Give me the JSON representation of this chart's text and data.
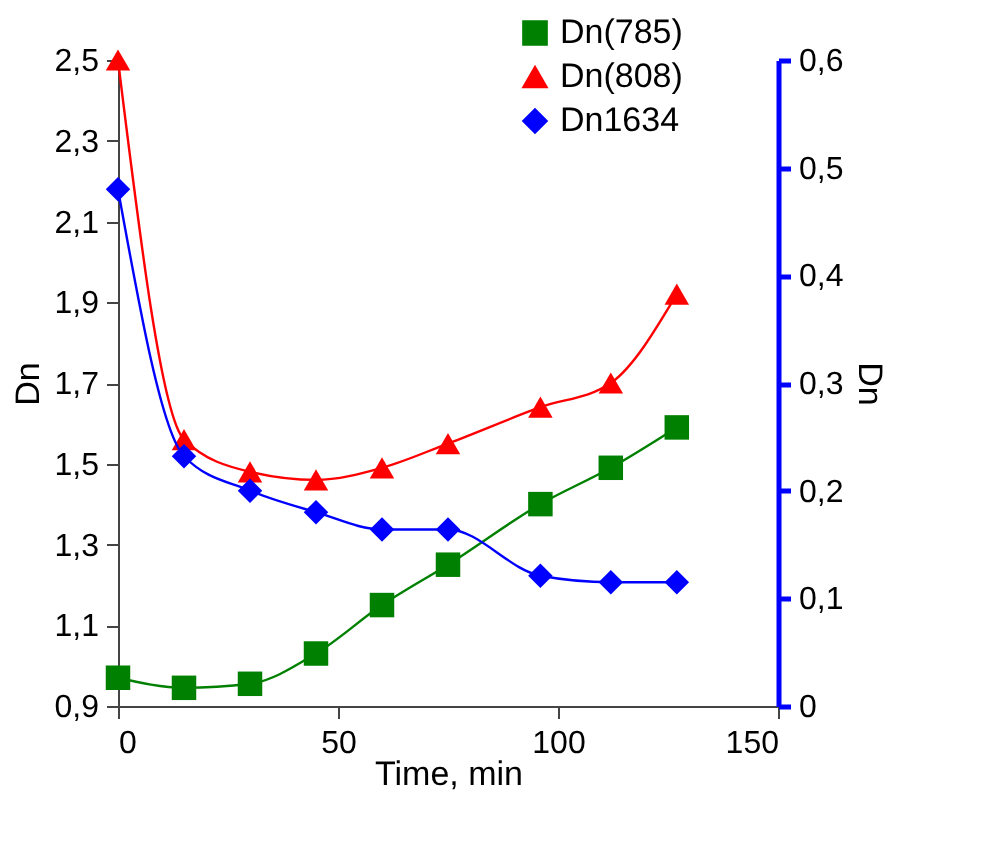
{
  "chart_data": {
    "type": "line",
    "xlabel": "Time, min",
    "ylabel": "Dn",
    "y2label": "Dn",
    "x": [
      0,
      15,
      30,
      45,
      60,
      75,
      96,
      112,
      127
    ],
    "series": [
      {
        "name": "Dn(785)",
        "color": "#008000",
        "marker": "square",
        "values": [
          0.97,
          0.945,
          0.955,
          1.03,
          1.15,
          1.25,
          1.4,
          1.49,
          1.59
        ]
      },
      {
        "name": "Dn(808)",
        "color": "#ff0000",
        "marker": "triangle",
        "values": [
          2.5,
          1.56,
          1.48,
          1.46,
          1.49,
          1.55,
          1.64,
          1.7,
          1.92
        ]
      },
      {
        "name": "Dn1634",
        "color": "#0000ff",
        "marker": "diamond",
        "axis": "y2",
        "values": [
          0.48,
          0.232,
          0.2,
          0.18,
          0.164,
          0.164,
          0.121,
          0.115,
          0.115
        ]
      }
    ],
    "xlim": [
      0,
      150
    ],
    "xticks": [
      0,
      50,
      100,
      150
    ],
    "ylim": [
      0.9,
      2.5
    ],
    "yticks": [
      {
        "value": 0.9,
        "label": "0,9"
      },
      {
        "value": 1.1,
        "label": "1,1"
      },
      {
        "value": 1.3,
        "label": "1,3"
      },
      {
        "value": 1.5,
        "label": "1,5"
      },
      {
        "value": 1.7,
        "label": "1,7"
      },
      {
        "value": 1.9,
        "label": "1,9"
      },
      {
        "value": 2.1,
        "label": "2,1"
      },
      {
        "value": 2.3,
        "label": "2,3"
      },
      {
        "value": 2.5,
        "label": "2,5"
      }
    ],
    "y2lim": [
      0,
      0.6
    ],
    "y2ticks": [
      0,
      {
        "value": 0.1,
        "label": "0,1"
      },
      {
        "value": 0.2,
        "label": "0,2"
      },
      {
        "value": 0.3,
        "label": "0,3"
      },
      {
        "value": 0.4,
        "label": "0,4"
      },
      {
        "value": 0.5,
        "label": "0,5"
      },
      {
        "value": 0.6,
        "label": "0,6"
      }
    ],
    "legend": "top right",
    "grid": false,
    "line_style": "solid"
  }
}
